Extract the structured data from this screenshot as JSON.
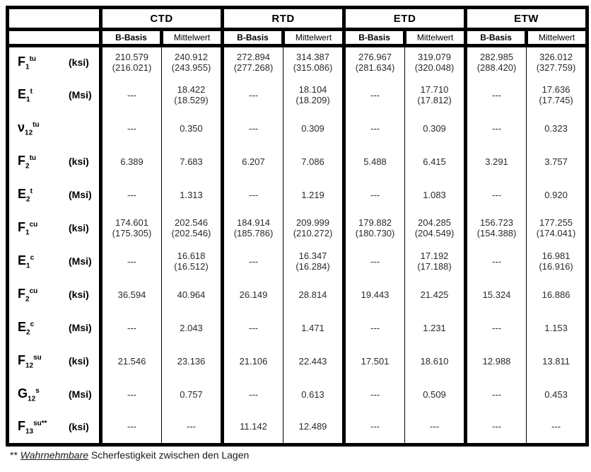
{
  "table": {
    "groups": [
      {
        "label": "CTD"
      },
      {
        "label": "RTD"
      },
      {
        "label": "ETD"
      },
      {
        "label": "ETW"
      }
    ],
    "subheaders": [
      "B-Basis",
      "Mittelwert"
    ],
    "rows": [
      {
        "base": "F",
        "subscript": "1",
        "superscript": "tu",
        "unit": "(ksi)",
        "values": [
          "210.579\n(216.021)",
          "240.912\n(243.955)",
          "272.894\n(277.268)",
          "314.387\n(315.086)",
          "276.967\n(281.634)",
          "319.079\n(320.048)",
          "282.985\n(288.420)",
          "326.012\n(327.759)"
        ]
      },
      {
        "base": "E",
        "subscript": "1",
        "superscript": "t",
        "unit": "(Msi)",
        "values": [
          "---",
          "18.422\n(18.529)",
          "---",
          "18.104\n(18.209)",
          "---",
          "17.710\n(17.812)",
          "---",
          "17.636\n(17.745)"
        ]
      },
      {
        "base": "ν",
        "subscript": "12",
        "superscript": "tu",
        "unit": "",
        "values": [
          "---",
          "0.350",
          "---",
          "0.309",
          "---",
          "0.309",
          "---",
          "0.323"
        ]
      },
      {
        "base": "F",
        "subscript": "2",
        "superscript": "tu",
        "unit": "(ksi)",
        "values": [
          "6.389",
          "7.683",
          "6.207",
          "7.086",
          "5.488",
          "6.415",
          "3.291",
          "3.757"
        ]
      },
      {
        "base": "E",
        "subscript": "2",
        "superscript": "t",
        "unit": "(Msi)",
        "values": [
          "---",
          "1.313",
          "---",
          "1.219",
          "---",
          "1.083",
          "---",
          "0.920"
        ]
      },
      {
        "base": "F",
        "subscript": "1",
        "superscript": "cu",
        "unit": "(ksi)",
        "values": [
          "174.601\n(175.305)",
          "202.546\n(202.546)",
          "184.914\n(185.786)",
          "209.999\n(210.272)",
          "179.882\n(180.730)",
          "204.285\n(204.549)",
          "156.723\n(154.388)",
          "177.255\n(174.041)"
        ]
      },
      {
        "base": "E",
        "subscript": "1",
        "superscript": "c",
        "unit": "(Msi)",
        "values": [
          "---",
          "16.618\n(16.512)",
          "---",
          "16.347\n(16.284)",
          "---",
          "17.192\n(17.188)",
          "---",
          "16.981\n(16.916)"
        ]
      },
      {
        "base": "F",
        "subscript": "2",
        "superscript": "cu",
        "unit": "(ksi)",
        "values": [
          "36.594",
          "40.964",
          "26.149",
          "28.814",
          "19.443",
          "21.425",
          "15.324",
          "16.886"
        ]
      },
      {
        "base": "E",
        "subscript": "2",
        "superscript": "c",
        "unit": "(Msi)",
        "values": [
          "---",
          "2.043",
          "---",
          "1.471",
          "---",
          "1.231",
          "---",
          "1.153"
        ]
      },
      {
        "base": "F",
        "subscript": "12",
        "superscript": "su",
        "unit": "(ksi)",
        "values": [
          "21.546",
          "23.136",
          "21.106",
          "22.443",
          "17.501",
          "18.610",
          "12.988",
          "13.811"
        ]
      },
      {
        "base": "G",
        "subscript": "12",
        "superscript": "s",
        "unit": "(Msi)",
        "values": [
          "---",
          "0.757",
          "---",
          "0.613",
          "---",
          "0.509",
          "---",
          "0.453"
        ]
      },
      {
        "base": "F",
        "subscript": "13",
        "superscript": "su**",
        "unit": "(ksi)",
        "values": [
          "---",
          "---",
          "11.142",
          "12.489",
          "---",
          "---",
          "---",
          "---"
        ]
      }
    ]
  },
  "footnote": {
    "marker": "**",
    "emphasis": "Wahrnehmbare",
    "rest": "Scherfestigkeit zwischen den Lagen"
  }
}
